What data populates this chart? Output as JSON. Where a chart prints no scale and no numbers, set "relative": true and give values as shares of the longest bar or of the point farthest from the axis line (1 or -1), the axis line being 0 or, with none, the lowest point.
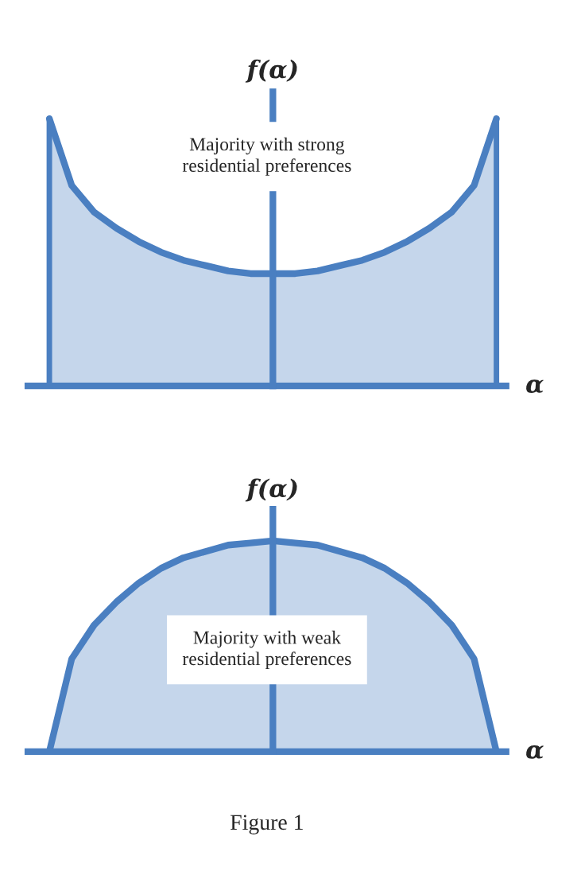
{
  "chart_data": [
    {
      "type": "area",
      "relative": true,
      "ylabel": "f(α)",
      "xlabel": "α",
      "categories": [
        null,
        null,
        null,
        null,
        null,
        null,
        null,
        null,
        null,
        null,
        null,
        null,
        null,
        null,
        null,
        null,
        null,
        null,
        null,
        null,
        null
      ],
      "series": [
        {
          "color": "#4a7fc1",
          "values": [
            1,
            0.75,
            0.65,
            0.59,
            0.54,
            0.5,
            0.47,
            0.45,
            0.43,
            0.42,
            0.42,
            0.42,
            0.43,
            0.45,
            0.47,
            0.5,
            0.54,
            0.59,
            0.65,
            0.75,
            1
          ]
        }
      ],
      "annotations": [
        "Majority with strong\nresidential preferences"
      ]
    },
    {
      "type": "area",
      "relative": true,
      "ylabel": "f(α)",
      "xlabel": "α",
      "categories": [
        null,
        null,
        null,
        null,
        null,
        null,
        null,
        null,
        null,
        null,
        null,
        null,
        null,
        null,
        null,
        null,
        null,
        null,
        null,
        null,
        null
      ],
      "series": [
        {
          "color": "#4a7fc1",
          "values": [
            0,
            0.44,
            0.6,
            0.71,
            0.8,
            0.87,
            0.92,
            0.95,
            0.98,
            0.99,
            1,
            0.99,
            0.98,
            0.95,
            0.92,
            0.87,
            0.8,
            0.71,
            0.6,
            0.44,
            0
          ]
        }
      ],
      "annotations": [
        "Majority with weak\nresidential preferences",
        "Figure 1"
      ]
    }
  ]
}
